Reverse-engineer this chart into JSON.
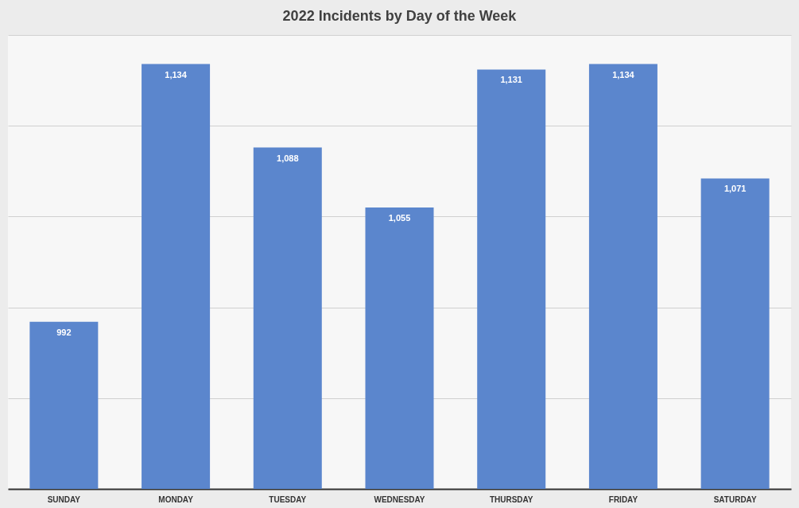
{
  "chart_data": {
    "type": "bar",
    "title": "2022 Incidents by Day of the Week",
    "categories": [
      "SUNDAY",
      "MONDAY",
      "TUESDAY",
      "WEDNESDAY",
      "THURSDAY",
      "FRIDAY",
      "SATURDAY"
    ],
    "values": [
      992,
      1134,
      1088,
      1055,
      1131,
      1134,
      1071
    ],
    "value_labels": [
      "992",
      "1,134",
      "1,088",
      "1,055",
      "1,131",
      "1,134",
      "1,071"
    ],
    "color": "#5b86cd",
    "ylim": [
      900,
      1150
    ],
    "yticks": [
      {
        "value": 900,
        "label": null
      },
      {
        "value": 950,
        "label": null
      },
      {
        "value": 1000,
        "label": null
      },
      {
        "value": 1050,
        "label": null
      },
      {
        "value": 1100,
        "label": null
      },
      {
        "value": 1150,
        "label": null
      }
    ],
    "grid": true
  }
}
